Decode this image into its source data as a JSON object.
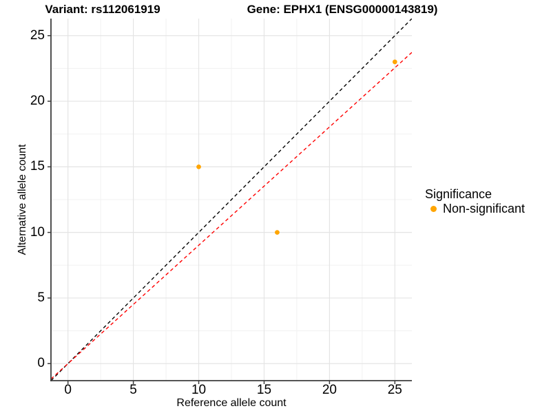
{
  "titles": {
    "variant": "Variant: rs112061919",
    "gene": "Gene: EPHX1 (ENSG00000143819)"
  },
  "legend": {
    "title": "Significance",
    "items": [
      {
        "label": "Non-significant",
        "color": "#FFA500"
      }
    ]
  },
  "chart_data": {
    "type": "scatter",
    "title_left": "Variant: rs112061919",
    "title_right": "Gene: EPHX1 (ENSG00000143819)",
    "xlabel": "Reference allele count",
    "ylabel": "Alternative allele count",
    "xlim": [
      -1.3,
      26.3
    ],
    "ylim": [
      -1.3,
      26.3
    ],
    "xticks": [
      0,
      5,
      10,
      15,
      20,
      25
    ],
    "yticks": [
      0,
      5,
      10,
      15,
      20,
      25
    ],
    "grid": "major and minor, light gray on white",
    "legend_position": "right",
    "series": [
      {
        "name": "Non-significant",
        "color": "#FFA500",
        "points": [
          {
            "x": 10,
            "y": 15
          },
          {
            "x": 16,
            "y": 10
          },
          {
            "x": 25,
            "y": 23
          }
        ]
      }
    ],
    "lines": [
      {
        "name": "identity-line",
        "slope": 1.0,
        "intercept": 0,
        "color": "#000000",
        "style": "dashed"
      },
      {
        "name": "fit-line",
        "slope": 0.902,
        "intercept": 0,
        "color": "#FF0000",
        "style": "dashed"
      }
    ]
  }
}
